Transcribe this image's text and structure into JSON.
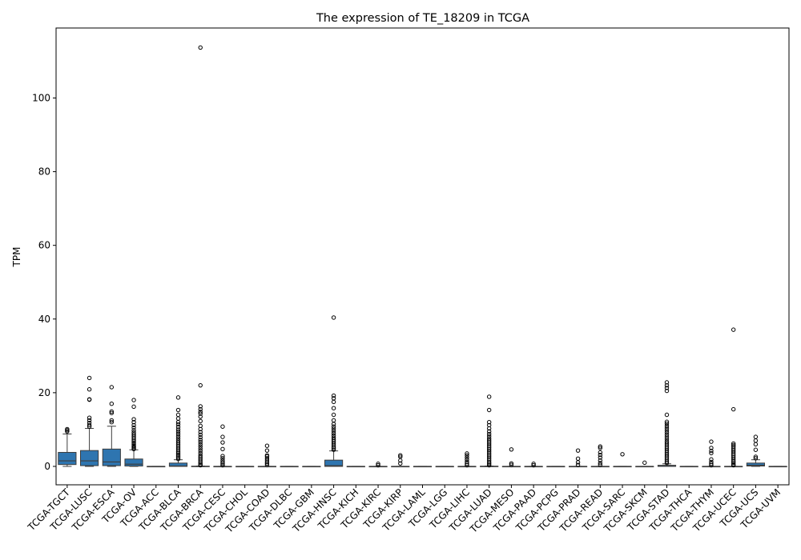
{
  "chart_data": {
    "type": "box",
    "title": "The expression of TE_18209 in TCGA",
    "xlabel": "",
    "ylabel": "TPM",
    "ylim": [
      -5,
      119
    ],
    "yticks": [
      0,
      20,
      40,
      60,
      80,
      100
    ],
    "grid": false,
    "box_color": "#2e75b0",
    "categories": [
      "TCGA-TGCT",
      "TCGA-LUSC",
      "TCGA-ESCA",
      "TCGA-OV",
      "TCGA-ACC",
      "TCGA-BLCA",
      "TCGA-BRCA",
      "TCGA-CESC",
      "TCGA-CHOL",
      "TCGA-COAD",
      "TCGA-DLBC",
      "TCGA-GBM",
      "TCGA-HNSC",
      "TCGA-KICH",
      "TCGA-KIRC",
      "TCGA-KIRP",
      "TCGA-LAML",
      "TCGA-LGG",
      "TCGA-LIHC",
      "TCGA-LUAD",
      "TCGA-MESO",
      "TCGA-PAAD",
      "TCGA-PCPG",
      "TCGA-PRAD",
      "TCGA-READ",
      "TCGA-SARC",
      "TCGA-SKCM",
      "TCGA-STAD",
      "TCGA-THCA",
      "TCGA-THYM",
      "TCGA-UCEC",
      "TCGA-UCS",
      "TCGA-UVM"
    ],
    "boxes": [
      {
        "q1": 0.5,
        "median": 1.5,
        "q3": 3.8,
        "whisker_low": 0,
        "whisker_high": 8.8,
        "outliers": [
          9.5,
          9.8,
          10.1
        ]
      },
      {
        "q1": 0.2,
        "median": 1.5,
        "q3": 4.3,
        "whisker_low": 0,
        "whisker_high": 10.3,
        "outliers": [
          10.8,
          11.2,
          11.8,
          12.5,
          13.2,
          18.1,
          18.2,
          20.9,
          24.0
        ]
      },
      {
        "q1": 0.2,
        "median": 1.2,
        "q3": 4.7,
        "whisker_low": 0,
        "whisker_high": 10.9,
        "outliers": [
          12.0,
          12.5,
          14.5,
          14.9,
          17.0,
          21.5
        ]
      },
      {
        "q1": 0.1,
        "median": 0.6,
        "q3": 2.0,
        "whisker_low": 0,
        "whisker_high": 4.5,
        "outliers": [
          4.7,
          5.0,
          5.3,
          5.6,
          6.0,
          6.4,
          6.8,
          7.2,
          7.7,
          8.2,
          8.7,
          9.2,
          9.8,
          10.5,
          11.2,
          12.0,
          12.8,
          16.2,
          18.0
        ]
      },
      {
        "q1": 0,
        "median": 0,
        "q3": 0,
        "whisker_low": 0,
        "whisker_high": 0,
        "outliers": []
      },
      {
        "q1": 0,
        "median": 0.1,
        "q3": 0.9,
        "whisker_low": 0,
        "whisker_high": 1.8,
        "outliers": [
          2.0,
          2.4,
          2.8,
          3.2,
          3.6,
          4.0,
          4.5,
          5.0,
          5.5,
          6.0,
          6.5,
          7.0,
          7.6,
          8.2,
          8.8,
          9.4,
          10.0,
          10.7,
          11.4,
          12.0,
          13.0,
          14.0,
          15.3,
          18.7
        ]
      },
      {
        "q1": 0,
        "median": 0,
        "q3": 0.05,
        "whisker_low": 0,
        "whisker_high": 0.1,
        "outliers": [
          0.3,
          0.6,
          1.0,
          1.5,
          2.0,
          2.5,
          3.0,
          3.6,
          4.2,
          4.8,
          5.4,
          6.0,
          6.6,
          7.2,
          7.9,
          8.6,
          9.3,
          10.1,
          11.0,
          12.3,
          13.5,
          14.3,
          14.8,
          15.5,
          16.3,
          22.0,
          113.7
        ]
      },
      {
        "q1": 0,
        "median": 0,
        "q3": 0,
        "whisker_low": 0,
        "whisker_high": 0,
        "outliers": [
          0.3,
          0.7,
          1.1,
          1.6,
          2.2,
          2.8,
          4.7,
          6.5,
          8.0,
          10.8
        ]
      },
      {
        "q1": 0,
        "median": 0,
        "q3": 0,
        "whisker_low": 0,
        "whisker_high": 0,
        "outliers": []
      },
      {
        "q1": 0,
        "median": 0,
        "q3": 0,
        "whisker_low": 0,
        "whisker_high": 0,
        "outliers": [
          0.4,
          0.8,
          1.2,
          1.7,
          2.2,
          2.7,
          3.0,
          4.3,
          5.6
        ]
      },
      {
        "q1": 0,
        "median": 0,
        "q3": 0,
        "whisker_low": 0,
        "whisker_high": 0,
        "outliers": []
      },
      {
        "q1": 0,
        "median": 0,
        "q3": 0,
        "whisker_low": 0,
        "whisker_high": 0,
        "outliers": []
      },
      {
        "q1": 0,
        "median": 0.2,
        "q3": 1.7,
        "whisker_low": 0,
        "whisker_high": 4.2,
        "outliers": [
          4.5,
          4.9,
          5.3,
          5.8,
          6.3,
          6.8,
          7.3,
          7.8,
          8.4,
          9.0,
          9.6,
          10.2,
          10.8,
          11.5,
          12.5,
          14.0,
          15.8,
          17.5,
          18.5,
          19.2,
          40.4
        ]
      },
      {
        "q1": 0,
        "median": 0,
        "q3": 0,
        "whisker_low": 0,
        "whisker_high": 0,
        "outliers": []
      },
      {
        "q1": 0,
        "median": 0,
        "q3": 0,
        "whisker_low": 0,
        "whisker_high": 0,
        "outliers": [
          0.3,
          0.7
        ]
      },
      {
        "q1": 0,
        "median": 0,
        "q3": 0,
        "whisker_low": 0,
        "whisker_high": 0,
        "outliers": [
          0.8,
          1.6,
          2.6,
          3.0
        ]
      },
      {
        "q1": 0,
        "median": 0,
        "q3": 0,
        "whisker_low": 0,
        "whisker_high": 0,
        "outliers": []
      },
      {
        "q1": 0,
        "median": 0,
        "q3": 0,
        "whisker_low": 0,
        "whisker_high": 0,
        "outliers": []
      },
      {
        "q1": 0,
        "median": 0,
        "q3": 0,
        "whisker_low": 0,
        "whisker_high": 0,
        "outliers": [
          0.3,
          0.7,
          1.2,
          1.8,
          2.4,
          3.0,
          3.5
        ]
      },
      {
        "q1": 0,
        "median": 0,
        "q3": 0.05,
        "whisker_low": 0,
        "whisker_high": 0.1,
        "outliers": [
          0.3,
          0.7,
          1.1,
          1.6,
          2.1,
          2.6,
          3.1,
          3.6,
          4.1,
          4.6,
          5.1,
          5.6,
          6.1,
          6.6,
          7.1,
          7.6,
          8.2,
          8.8,
          9.5,
          10.3,
          11.2,
          12.0,
          15.3,
          18.9
        ]
      },
      {
        "q1": 0,
        "median": 0,
        "q3": 0,
        "whisker_low": 0,
        "whisker_high": 0,
        "outliers": [
          0.4,
          0.8,
          4.6
        ]
      },
      {
        "q1": 0,
        "median": 0,
        "q3": 0,
        "whisker_low": 0,
        "whisker_high": 0,
        "outliers": [
          0.3,
          0.7
        ]
      },
      {
        "q1": 0,
        "median": 0,
        "q3": 0,
        "whisker_low": 0,
        "whisker_high": 0,
        "outliers": []
      },
      {
        "q1": 0,
        "median": 0,
        "q3": 0,
        "whisker_low": 0,
        "whisker_high": 0,
        "outliers": [
          0.4,
          1.1,
          2.1,
          4.3
        ]
      },
      {
        "q1": 0,
        "median": 0,
        "q3": 0,
        "whisker_low": 0,
        "whisker_high": 0,
        "outliers": [
          0.4,
          0.9,
          1.6,
          2.4,
          3.1,
          3.8,
          5.0,
          5.4
        ]
      },
      {
        "q1": 0,
        "median": 0,
        "q3": 0,
        "whisker_low": 0,
        "whisker_high": 0,
        "outliers": [
          3.3
        ]
      },
      {
        "q1": 0,
        "median": 0,
        "q3": 0,
        "whisker_low": 0,
        "whisker_high": 0,
        "outliers": [
          1.0
        ]
      },
      {
        "q1": 0,
        "median": 0.05,
        "q3": 0.3,
        "whisker_low": 0,
        "whisker_high": 0.7,
        "outliers": [
          0.9,
          1.3,
          1.8,
          2.3,
          2.8,
          3.3,
          3.8,
          4.3,
          4.8,
          5.3,
          5.8,
          6.3,
          6.8,
          7.4,
          8.0,
          8.6,
          9.2,
          9.8,
          10.4,
          11.0,
          11.6,
          12.1,
          14.0,
          20.5,
          21.3,
          22.0,
          22.8
        ]
      },
      {
        "q1": 0,
        "median": 0,
        "q3": 0,
        "whisker_low": 0,
        "whisker_high": 0,
        "outliers": []
      },
      {
        "q1": 0,
        "median": 0,
        "q3": 0,
        "whisker_low": 0,
        "whisker_high": 0,
        "outliers": [
          0.3,
          0.7,
          1.2,
          1.9,
          3.6,
          4.2,
          5.0,
          6.7
        ]
      },
      {
        "q1": 0,
        "median": 0,
        "q3": 0,
        "whisker_low": 0,
        "whisker_high": 0,
        "outliers": [
          0.3,
          0.6,
          1.0,
          1.4,
          1.9,
          2.4,
          2.9,
          3.4,
          3.9,
          4.4,
          4.9,
          5.4,
          5.8,
          6.2,
          15.5,
          37.1
        ]
      },
      {
        "q1": 0.1,
        "median": 0.3,
        "q3": 0.9,
        "whisker_low": 0,
        "whisker_high": 1.8,
        "outliers": [
          2.2,
          2.6,
          4.5,
          6.0,
          7.0,
          8.0
        ]
      },
      {
        "q1": 0,
        "median": 0,
        "q3": 0,
        "whisker_low": 0,
        "whisker_high": 0,
        "outliers": []
      }
    ]
  }
}
